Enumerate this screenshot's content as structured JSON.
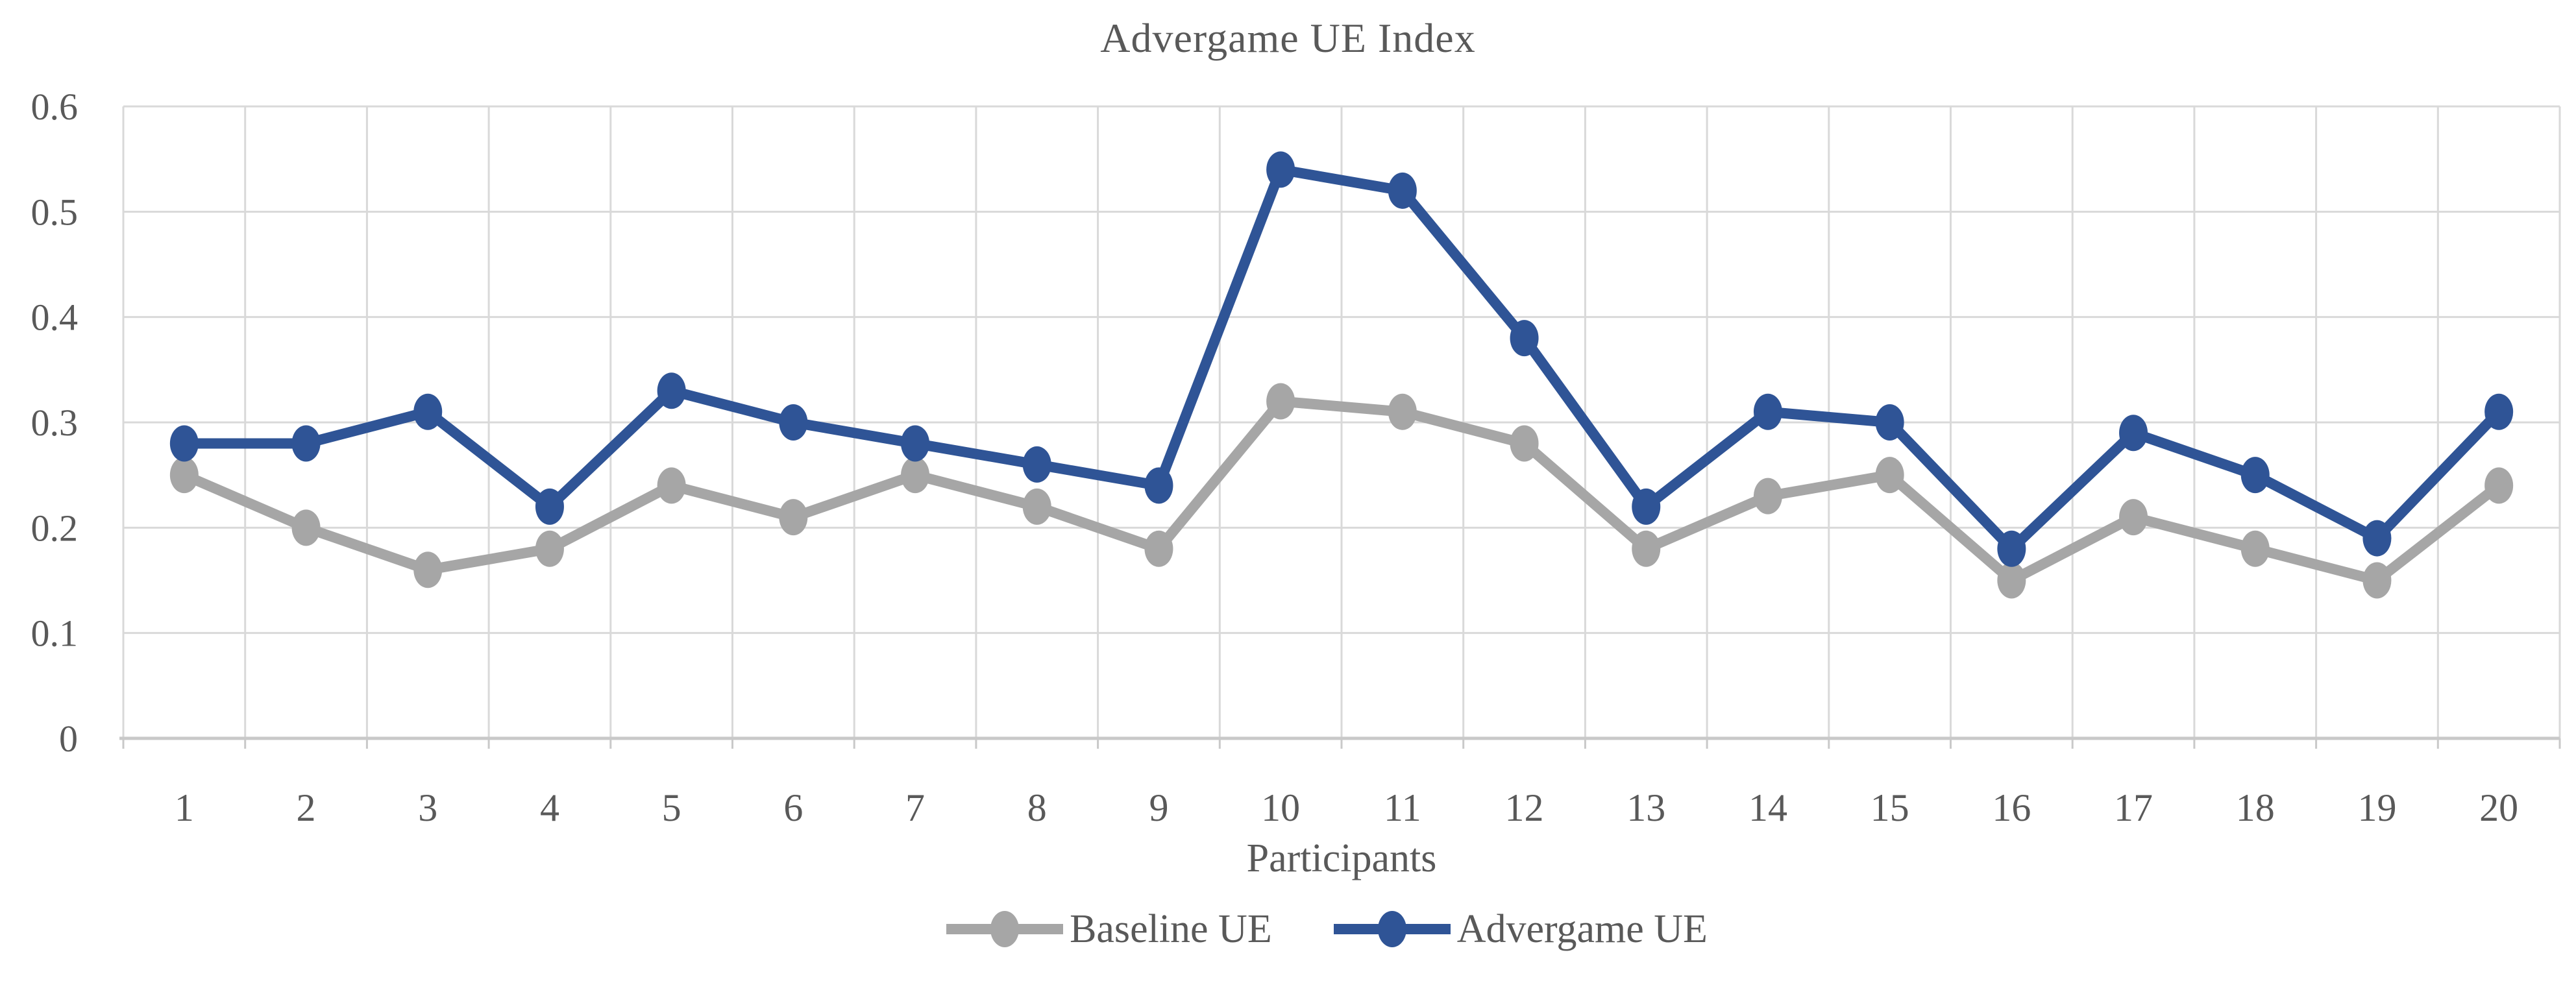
{
  "chart_data": {
    "type": "line",
    "title": "Advergame UE Index",
    "xlabel": "Participants",
    "categories": [
      "1",
      "2",
      "3",
      "4",
      "5",
      "6",
      "7",
      "8",
      "9",
      "10",
      "11",
      "12",
      "13",
      "14",
      "15",
      "16",
      "17",
      "18",
      "19",
      "20"
    ],
    "y_axis": {
      "min": 0,
      "max": 0.6,
      "ticks": [
        "0",
        "0.1",
        "0.2",
        "0.3",
        "0.4",
        "0.5",
        "0.6"
      ]
    },
    "grid": true,
    "legend_position": "bottom",
    "series": [
      {
        "name": "Baseline UE",
        "color": "#A6A6A6",
        "values": [
          0.25,
          0.2,
          0.16,
          0.18,
          0.24,
          0.21,
          0.25,
          0.22,
          0.18,
          0.32,
          0.31,
          0.28,
          0.18,
          0.23,
          0.25,
          0.15,
          0.21,
          0.18,
          0.15,
          0.24
        ]
      },
      {
        "name": "Advergame UE",
        "color": "#2F5496",
        "values": [
          0.28,
          0.28,
          0.31,
          0.22,
          0.33,
          0.3,
          0.28,
          0.26,
          0.24,
          0.54,
          0.52,
          0.38,
          0.22,
          0.31,
          0.3,
          0.18,
          0.29,
          0.25,
          0.19,
          0.31
        ]
      }
    ]
  },
  "colors": {
    "grid": "#D9D9D9",
    "axis": "#C9C9C9",
    "text": "#595959",
    "background": "#FFFFFF"
  }
}
